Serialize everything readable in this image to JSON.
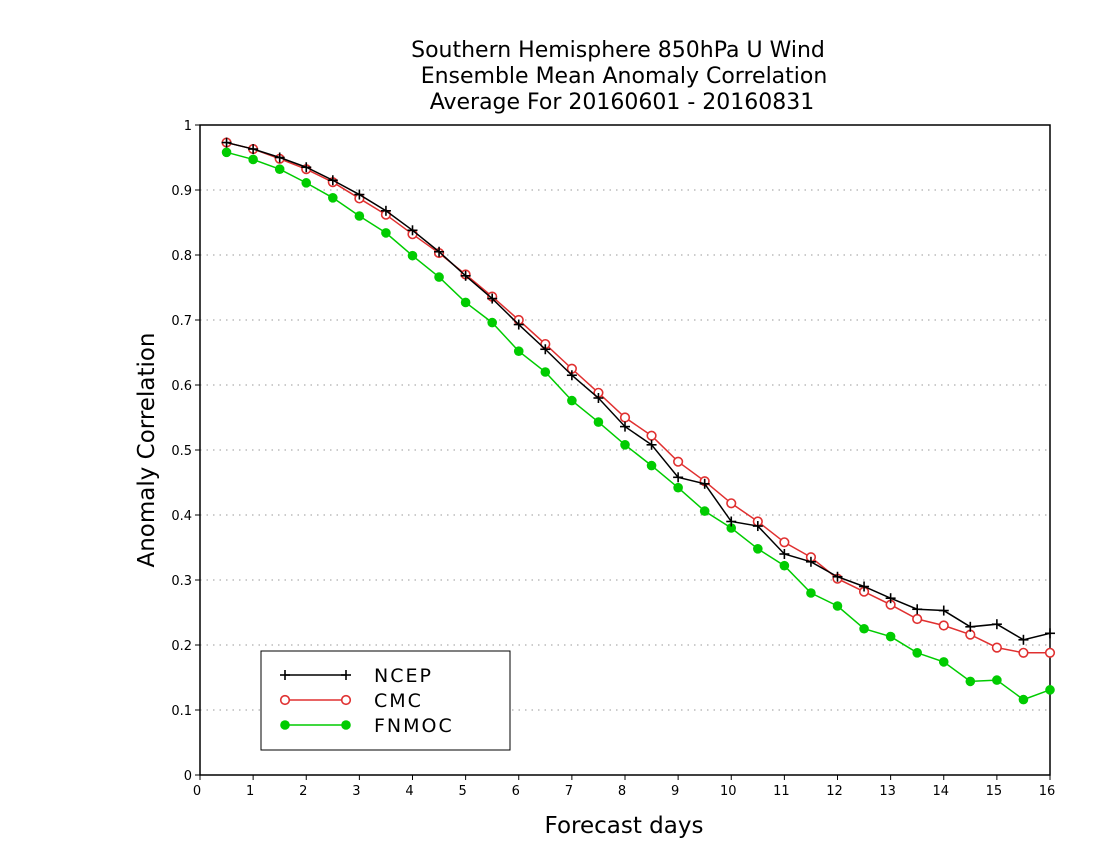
{
  "chart_data": {
    "type": "line",
    "title": [
      "Southern Hemisphere 850hPa U Wind",
      "Ensemble Mean Anomaly Correlation",
      "Average For 20160601 - 20160831"
    ],
    "xlabel": "Forecast days",
    "ylabel": "Anomaly Correlation",
    "xlim": [
      0,
      16
    ],
    "ylim": [
      0,
      1
    ],
    "xticks": [
      "0",
      "1",
      "2",
      "3",
      "4",
      "5",
      "6",
      "7",
      "8",
      "9",
      "10",
      "11",
      "12",
      "13",
      "14",
      "15",
      "16"
    ],
    "yticks": [
      "0",
      "0.1",
      "0.2",
      "0.3",
      "0.4",
      "0.5",
      "0.6",
      "0.7",
      "0.8",
      "0.9",
      "1"
    ],
    "grid": "horizontal dotted",
    "legend_position": "bottom-left",
    "x": [
      0.5,
      1,
      1.5,
      2,
      2.5,
      3,
      3.5,
      4,
      4.5,
      5,
      5.5,
      6,
      6.5,
      7,
      7.5,
      8,
      8.5,
      9,
      9.5,
      10,
      10.5,
      11,
      11.5,
      12,
      12.5,
      13,
      13.5,
      14,
      14.5,
      15,
      15.5,
      16
    ],
    "series": [
      {
        "name": "NCEP",
        "color": "#000000",
        "marker": "plus",
        "values": [
          0.973,
          0.963,
          0.95,
          0.935,
          0.915,
          0.893,
          0.868,
          0.838,
          0.805,
          0.768,
          0.733,
          0.693,
          0.655,
          0.615,
          0.58,
          0.536,
          0.508,
          0.458,
          0.448,
          0.39,
          0.383,
          0.34,
          0.328,
          0.305,
          0.29,
          0.272,
          0.255,
          0.253,
          0.228,
          0.232,
          0.208,
          0.218
        ]
      },
      {
        "name": "CMC",
        "color": "#e03030",
        "marker": "open-circle",
        "values": [
          0.973,
          0.963,
          0.948,
          0.932,
          0.912,
          0.887,
          0.862,
          0.832,
          0.803,
          0.77,
          0.736,
          0.7,
          0.663,
          0.625,
          0.588,
          0.55,
          0.522,
          0.482,
          0.452,
          0.418,
          0.39,
          0.358,
          0.335,
          0.302,
          0.282,
          0.262,
          0.24,
          0.23,
          0.216,
          0.196,
          0.188,
          0.188
        ]
      },
      {
        "name": "FNMOC",
        "color": "#00cc00",
        "marker": "filled-circle",
        "values": [
          0.958,
          0.947,
          0.932,
          0.911,
          0.888,
          0.86,
          0.834,
          0.799,
          0.766,
          0.727,
          0.696,
          0.652,
          0.62,
          0.576,
          0.543,
          0.508,
          0.476,
          0.442,
          0.406,
          0.38,
          0.348,
          0.322,
          0.28,
          0.26,
          0.225,
          0.213,
          0.188,
          0.174,
          0.144,
          0.146,
          0.116,
          0.131
        ]
      }
    ]
  }
}
